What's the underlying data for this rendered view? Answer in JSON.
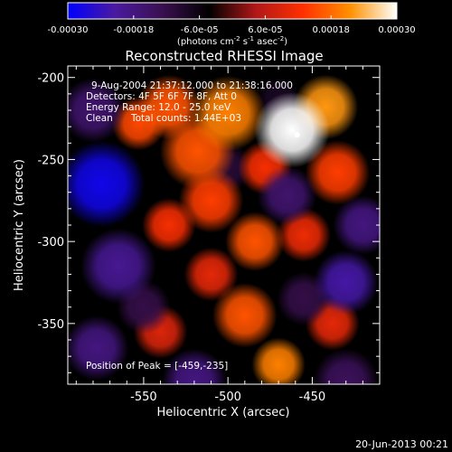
{
  "chart_data": {
    "type": "heatmap",
    "title": "Reconstructed RHESSI Image",
    "xlabel": "Heliocentric X (arcsec)",
    "ylabel": "Heliocentric Y (arcsec)",
    "xlim": [
      -595,
      -410
    ],
    "ylim": [
      -387,
      -193
    ],
    "x_ticks": [
      -550,
      -500,
      -450
    ],
    "y_ticks": [
      -200,
      -250,
      -300,
      -350
    ],
    "colorbar": {
      "range": [
        -0.0003,
        0.0003
      ],
      "ticks": [
        "-0.00030",
        "-0.00018",
        "-6.0e-05",
        "6.0e-05",
        "0.00018",
        "0.00030"
      ],
      "unit_label": "(photons cm-2 s-1 asec-2)",
      "colors": [
        "#0000ff",
        "#4a1aa0",
        "#3a1050",
        "#000000",
        "#b01818",
        "#ff3000",
        "#ff9000",
        "#ffffff"
      ]
    },
    "annotations": {
      "time_range": "9-Aug-2004 21:37:12.000 to 21:38:16.000",
      "detectors": "Detectors: 4F 5F 6F 7F 8F, Att 0",
      "energy": "Energy Range: 12.0 - 25.0 keV",
      "clean": "Clean",
      "total_counts": "Total counts: 1.44E+03",
      "peak": "Position of Peak = [-459,-235]"
    },
    "peak": {
      "x": -459,
      "y": -235
    },
    "blobs": [
      {
        "x": -462,
        "y": -232,
        "v": 0.0003,
        "s": 14
      },
      {
        "x": -442,
        "y": -218,
        "v": 0.00022,
        "s": 12
      },
      {
        "x": -500,
        "y": -222,
        "v": 0.0002,
        "s": 14
      },
      {
        "x": -535,
        "y": -218,
        "v": 0.00016,
        "s": 12
      },
      {
        "x": -553,
        "y": -228,
        "v": 0.00015,
        "s": 10
      },
      {
        "x": -518,
        "y": -245,
        "v": 0.00016,
        "s": 14
      },
      {
        "x": -478,
        "y": -255,
        "v": 0.00012,
        "s": 10
      },
      {
        "x": -435,
        "y": -258,
        "v": 0.00014,
        "s": 12
      },
      {
        "x": -510,
        "y": -275,
        "v": 0.00014,
        "s": 12
      },
      {
        "x": -535,
        "y": -290,
        "v": 0.00012,
        "s": 10
      },
      {
        "x": -484,
        "y": -300,
        "v": 0.00016,
        "s": 11
      },
      {
        "x": -455,
        "y": -296,
        "v": 0.00011,
        "s": 10
      },
      {
        "x": -510,
        "y": -320,
        "v": 0.0001,
        "s": 10
      },
      {
        "x": -490,
        "y": -345,
        "v": 0.00016,
        "s": 12
      },
      {
        "x": -470,
        "y": -375,
        "v": 0.0002,
        "s": 10
      },
      {
        "x": -438,
        "y": -350,
        "v": 0.0001,
        "s": 10
      },
      {
        "x": -540,
        "y": -355,
        "v": 9e-05,
        "s": 10
      },
      {
        "x": -575,
        "y": -265,
        "v": -0.00028,
        "s": 16
      },
      {
        "x": -580,
        "y": -220,
        "v": -0.00016,
        "s": 12
      },
      {
        "x": -565,
        "y": -315,
        "v": -0.0002,
        "s": 14
      },
      {
        "x": -578,
        "y": -365,
        "v": -0.00018,
        "s": 12
      },
      {
        "x": -500,
        "y": -255,
        "v": -0.0001,
        "s": 9
      },
      {
        "x": -465,
        "y": -272,
        "v": -0.00016,
        "s": 11
      },
      {
        "x": -420,
        "y": -290,
        "v": -0.00018,
        "s": 11
      },
      {
        "x": -430,
        "y": -325,
        "v": -0.00022,
        "s": 12
      },
      {
        "x": -455,
        "y": -335,
        "v": -0.00012,
        "s": 10
      },
      {
        "x": -520,
        "y": -385,
        "v": -0.00018,
        "s": 12
      },
      {
        "x": -550,
        "y": -340,
        "v": -0.00012,
        "s": 10
      },
      {
        "x": -470,
        "y": -213,
        "v": -8e-05,
        "s": 8
      },
      {
        "x": -430,
        "y": -385,
        "v": -0.00014,
        "s": 12
      }
    ]
  },
  "footer": {
    "timestamp": "20-Jun-2013 00:21"
  }
}
